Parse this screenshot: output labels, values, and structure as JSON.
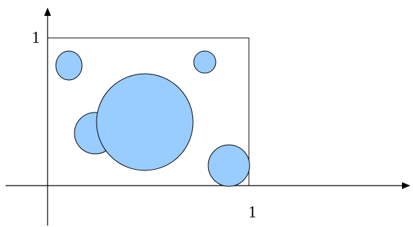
{
  "labels": {
    "y_tick": "1",
    "x_tick": "1"
  },
  "colors": {
    "circle_fill": "#99ccff",
    "stroke": "#000000"
  }
}
